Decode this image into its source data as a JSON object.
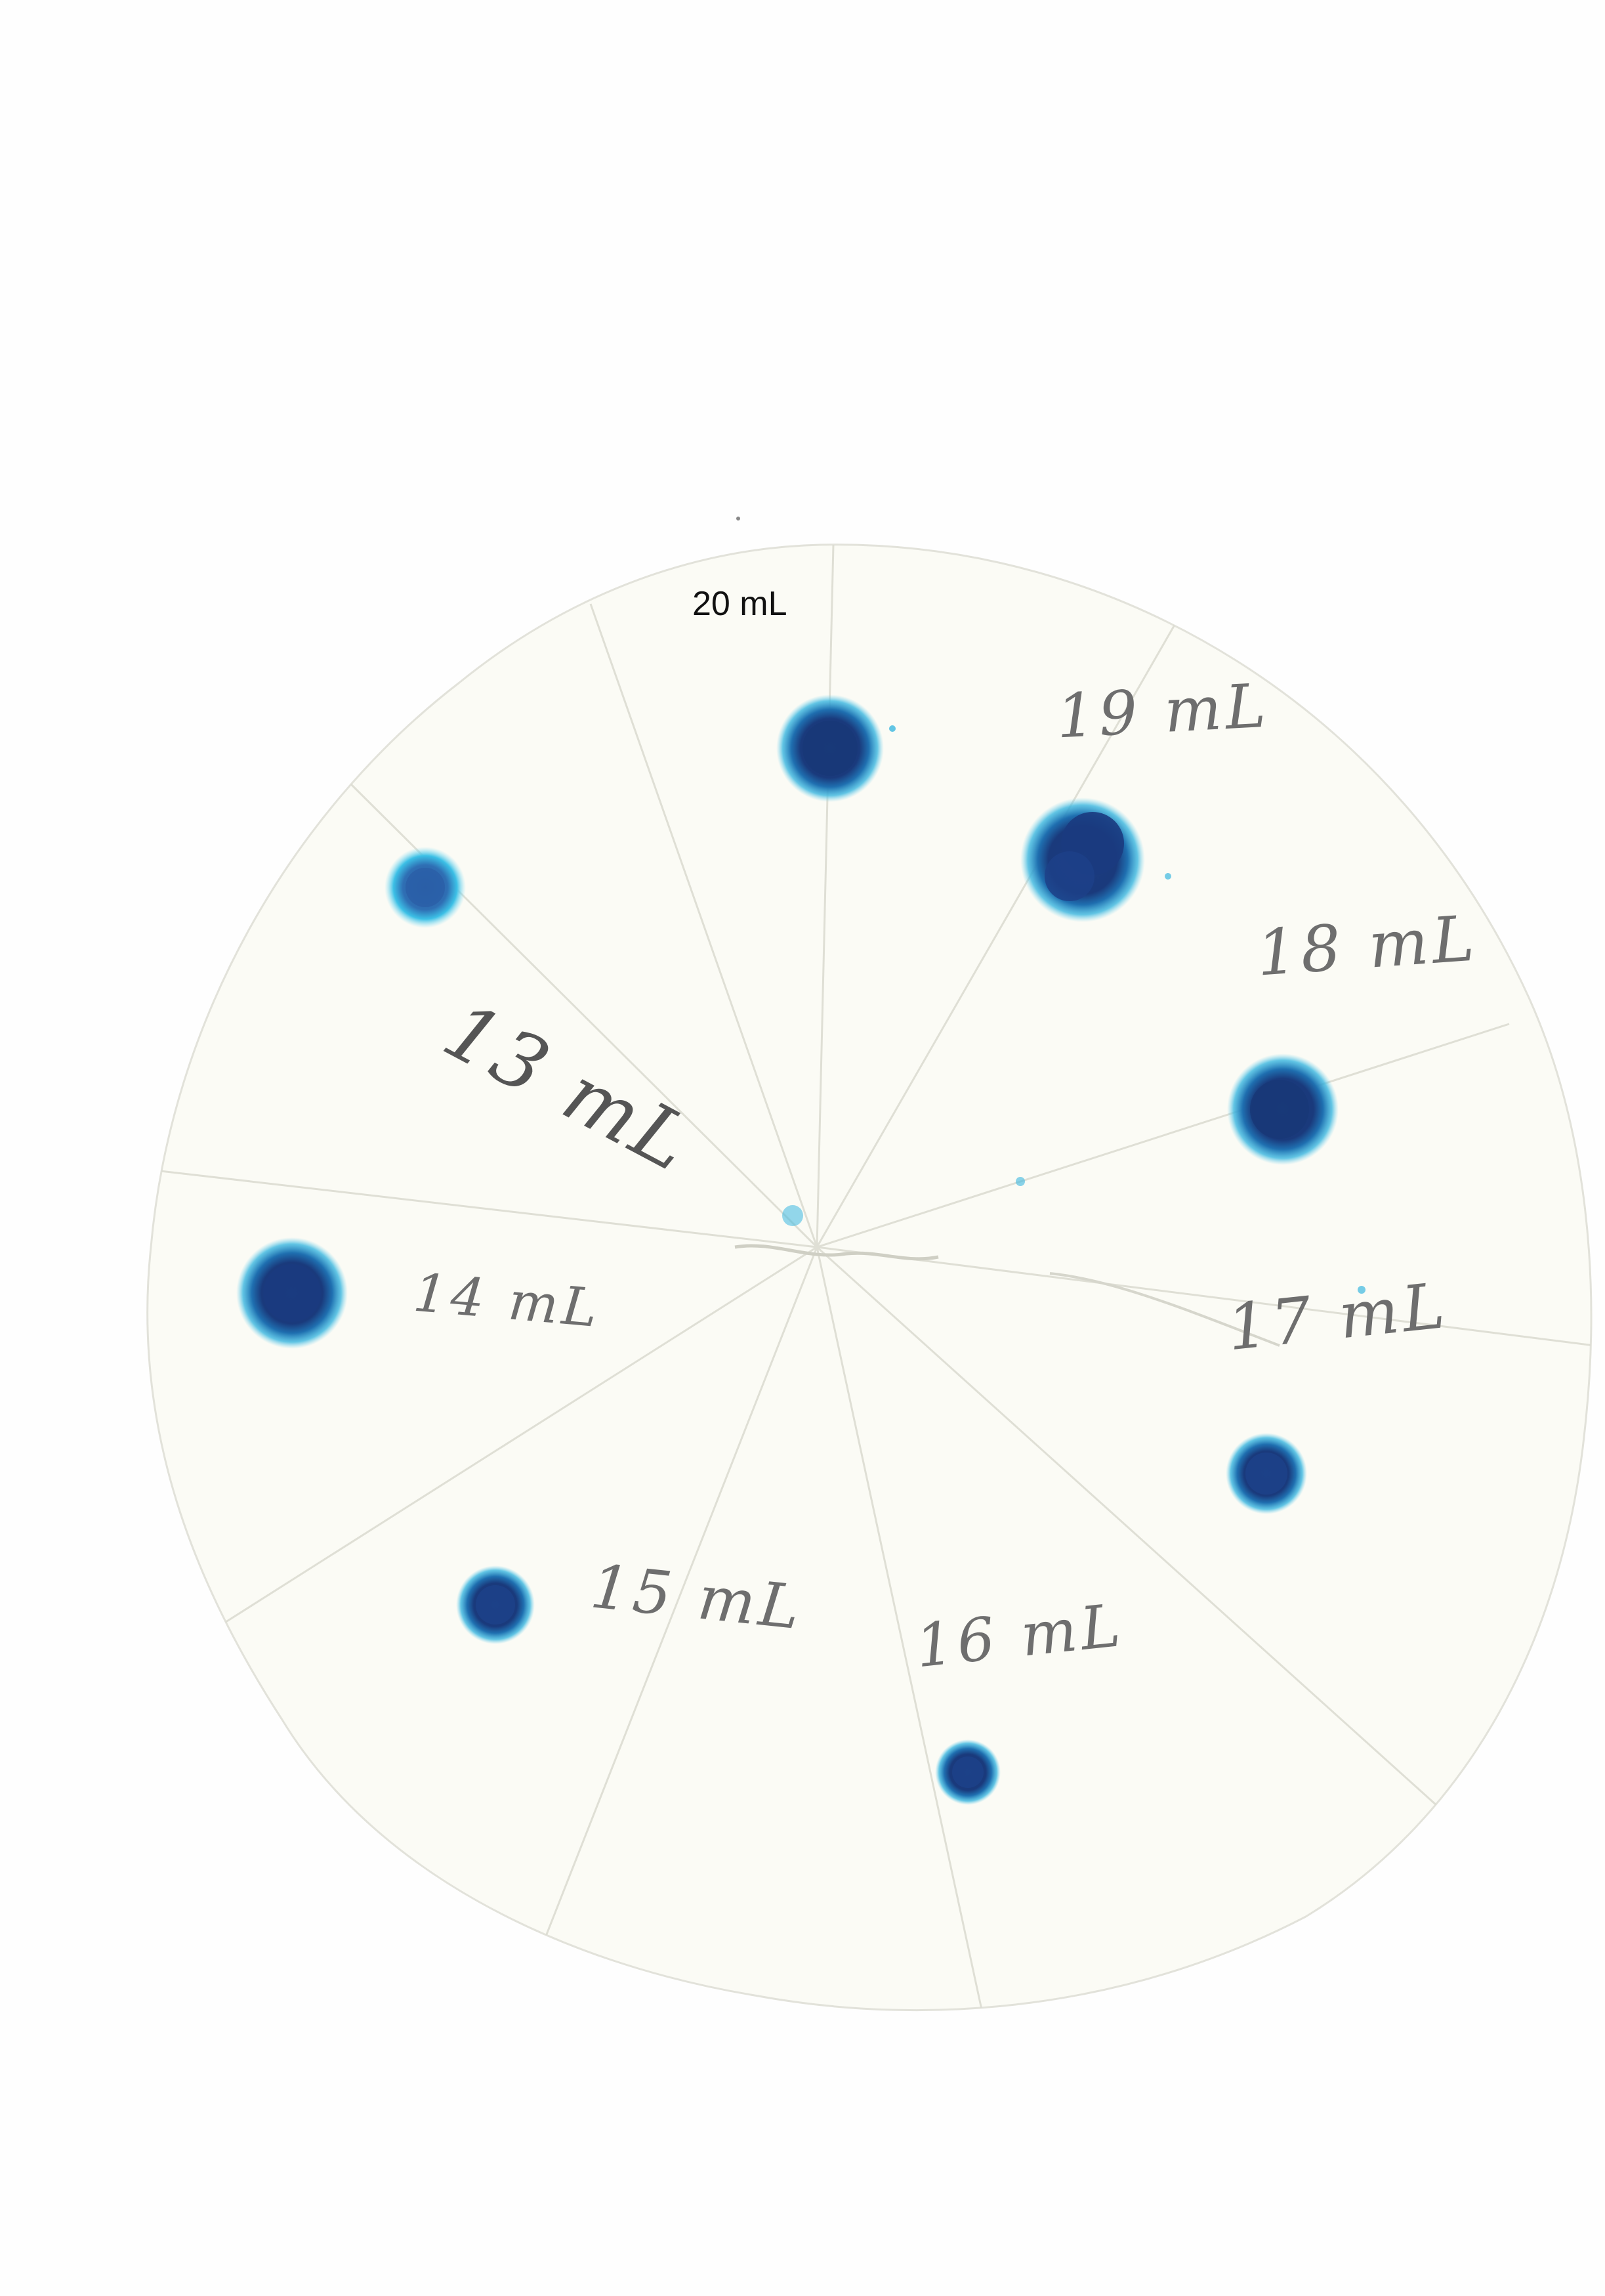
{
  "labels": {
    "typed": "20 mL",
    "handwritten": {
      "ml19": "19 mL",
      "ml18": "18 mL",
      "ml17": "17 mL",
      "ml16": "16 mL",
      "ml15": "15 mL",
      "ml14": "14 mL",
      "ml13": "13 mL"
    }
  },
  "colors": {
    "ink_dark": "#14306e",
    "ink_light": "#2aa9d6",
    "paper": "#fcfcf7",
    "pencil": "#6e6e6e"
  }
}
